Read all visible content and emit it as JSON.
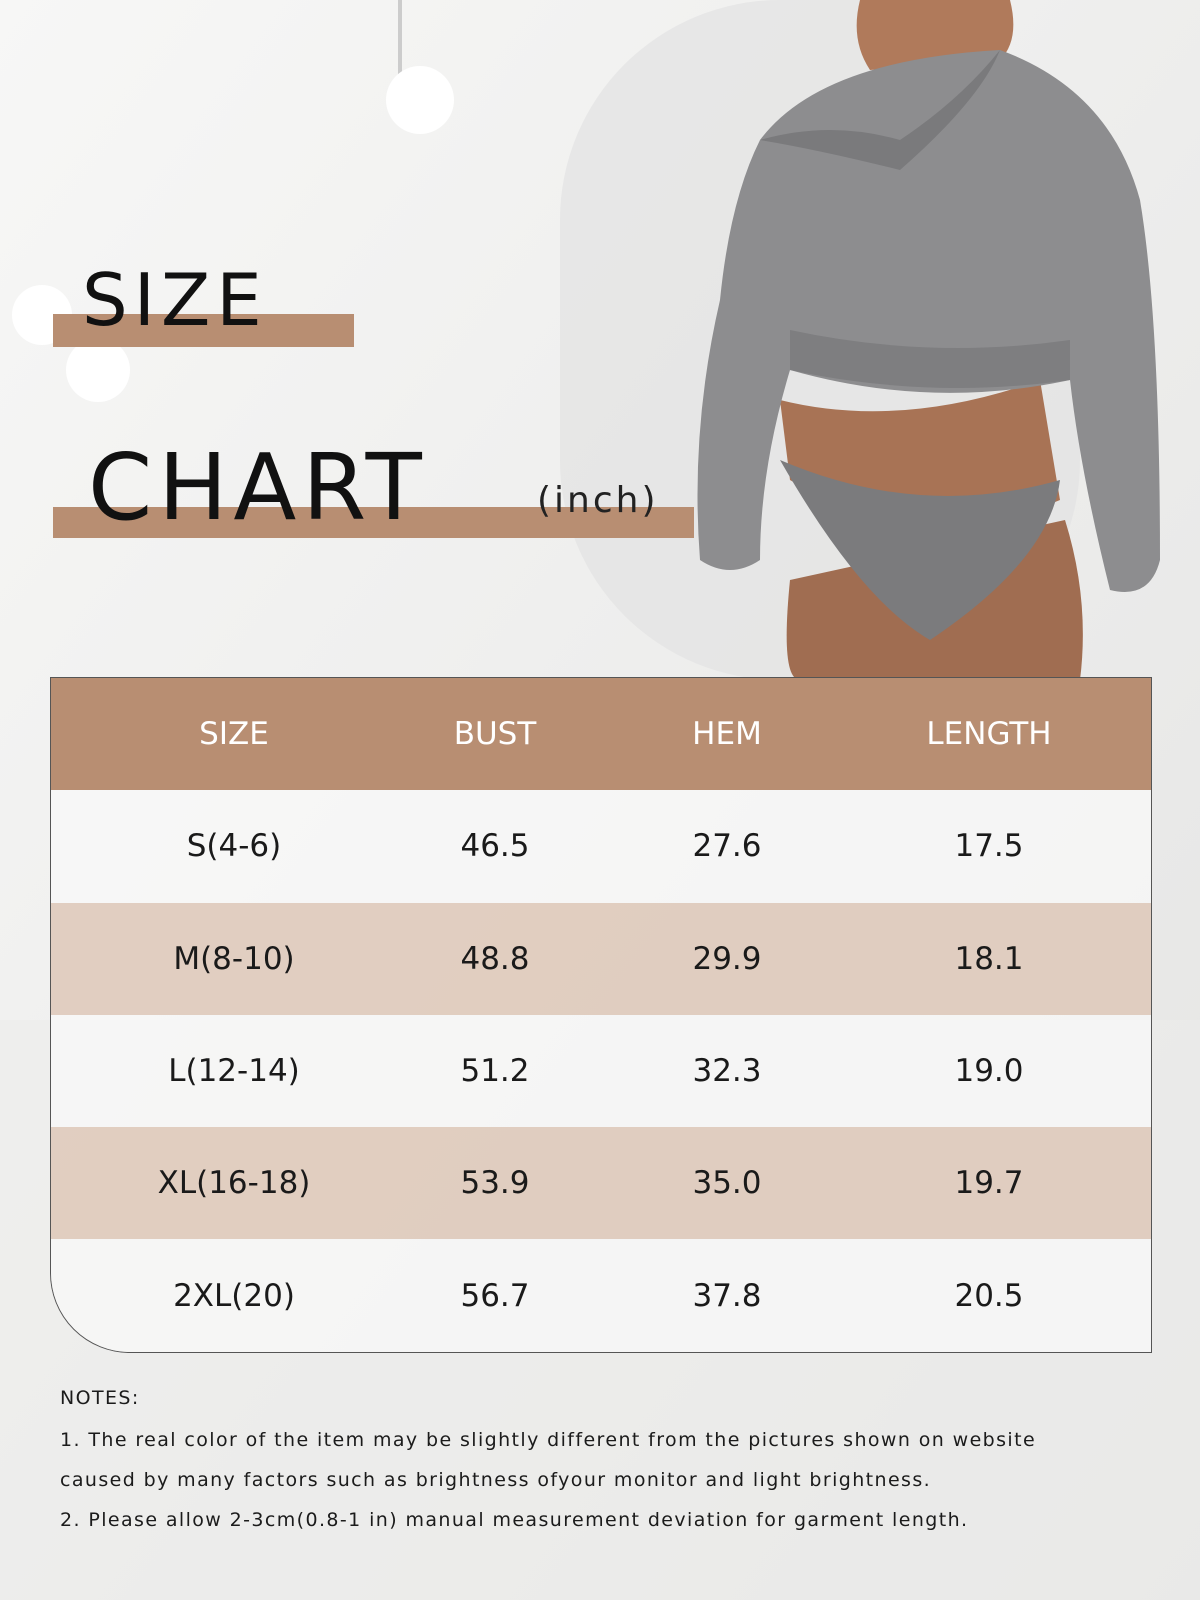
{
  "heading": {
    "word1": "SIZE",
    "word2": "CHART",
    "unit": "(inch)"
  },
  "table": {
    "header": [
      "SIZE",
      "BUST",
      "HEM",
      "LENGTH"
    ],
    "rows": [
      [
        "S(4-6)",
        "46.5",
        "27.6",
        "17.5"
      ],
      [
        "M(8-10)",
        "48.8",
        "29.9",
        "18.1"
      ],
      [
        "L(12-14)",
        "51.2",
        "32.3",
        "19.0"
      ],
      [
        "XL(16-18)",
        "53.9",
        "35.0",
        "19.7"
      ],
      [
        "2XL(20)",
        "56.7",
        "37.8",
        "20.5"
      ]
    ]
  },
  "notes": {
    "title": "NOTES:",
    "lines": [
      "1. The real color of the item may be slightly different from the pictures shown on website",
      "caused by many factors such as brightness ofyour monitor and light brightness.",
      "2. Please allow 2-3cm(0.8-1 in) manual measurement deviation for garment length."
    ]
  }
}
